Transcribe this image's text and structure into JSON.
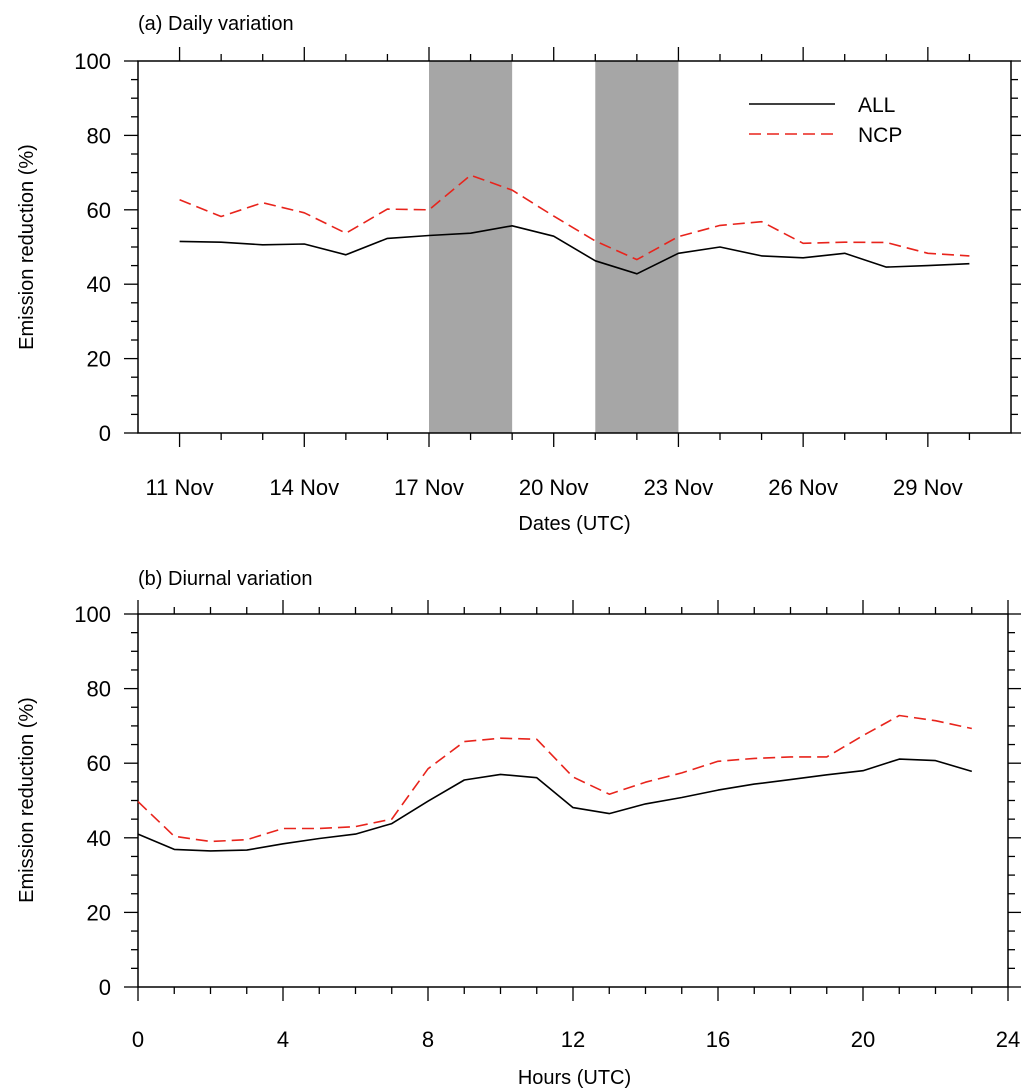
{
  "chart_data": [
    {
      "type": "line",
      "title": "(a) Daily variation",
      "xlabel": "Dates (UTC)",
      "ylabel": "Emission reduction (%)",
      "ylim": [
        0,
        100
      ],
      "yticks": [
        0,
        20,
        40,
        60,
        80,
        100
      ],
      "x_day_range": [
        10,
        31
      ],
      "x_days": [
        11,
        12,
        13,
        14,
        15,
        16,
        17,
        18,
        19,
        20,
        21,
        22,
        23,
        24,
        25,
        26,
        27,
        28,
        29,
        30
      ],
      "xtick_labels": [
        "11 Nov",
        "14 Nov",
        "17 Nov",
        "20 Nov",
        "23 Nov",
        "26 Nov",
        "29 Nov"
      ],
      "xtick_days": [
        11,
        14,
        17,
        20,
        23,
        26,
        29
      ],
      "shaded_periods": [
        {
          "start": "17 Nov",
          "end": "19 Nov",
          "start_day": 17,
          "end_day": 19,
          "color": "#a6a6a6"
        },
        {
          "start": "21 Nov",
          "end": "23 Nov",
          "start_day": 21,
          "end_day": 23,
          "color": "#a6a6a6"
        }
      ],
      "legend": {
        "position": "top-right"
      },
      "grid": false,
      "series": [
        {
          "name": "ALL",
          "color": "#000000",
          "dash": "solid",
          "values": [
            51.5,
            51.3,
            50.6,
            50.8,
            47.9,
            52.3,
            53.1,
            53.7,
            55.7,
            52.9,
            46.3,
            42.8,
            48.3,
            50.0,
            47.6,
            47.1,
            48.3,
            44.6,
            45.0,
            45.5
          ]
        },
        {
          "name": "NCP",
          "color": "#e8241c",
          "dash": "dashed",
          "values": [
            62.7,
            58.2,
            61.9,
            59.2,
            53.7,
            60.2,
            60.0,
            69.3,
            65.3,
            58.3,
            51.6,
            46.6,
            52.8,
            55.8,
            56.8,
            51.0,
            51.3,
            51.2,
            48.3,
            47.6
          ]
        }
      ]
    },
    {
      "type": "line",
      "title": "(b) Diurnal variation",
      "xlabel": "Hours (UTC)",
      "ylabel": "Emission reduction (%)",
      "ylim": [
        0,
        100
      ],
      "xlim": [
        0,
        24
      ],
      "yticks": [
        0,
        20,
        40,
        60,
        80,
        100
      ],
      "xticks": [
        0,
        4,
        8,
        12,
        16,
        20,
        24
      ],
      "x": [
        0,
        1,
        2,
        3,
        4,
        5,
        6,
        7,
        8,
        9,
        10,
        11,
        12,
        13,
        14,
        15,
        16,
        17,
        18,
        19,
        20,
        21,
        22,
        23
      ],
      "grid": false,
      "series": [
        {
          "name": "ALL",
          "color": "#000000",
          "dash": "solid",
          "values": [
            41.0,
            36.9,
            36.5,
            36.7,
            38.4,
            39.8,
            41.0,
            43.8,
            49.8,
            55.5,
            57.0,
            56.1,
            48.1,
            46.5,
            49.1,
            50.8,
            52.8,
            54.4,
            55.6,
            56.9,
            58.0,
            61.1,
            60.7,
            57.8
          ]
        },
        {
          "name": "NCP",
          "color": "#e8241c",
          "dash": "dashed",
          "values": [
            49.7,
            40.4,
            39.0,
            39.5,
            42.5,
            42.5,
            43.0,
            45.0,
            58.5,
            65.8,
            66.7,
            66.4,
            56.3,
            51.7,
            54.9,
            57.4,
            60.5,
            61.3,
            61.7,
            61.7,
            67.4,
            72.8,
            71.4,
            69.3
          ]
        }
      ]
    }
  ]
}
